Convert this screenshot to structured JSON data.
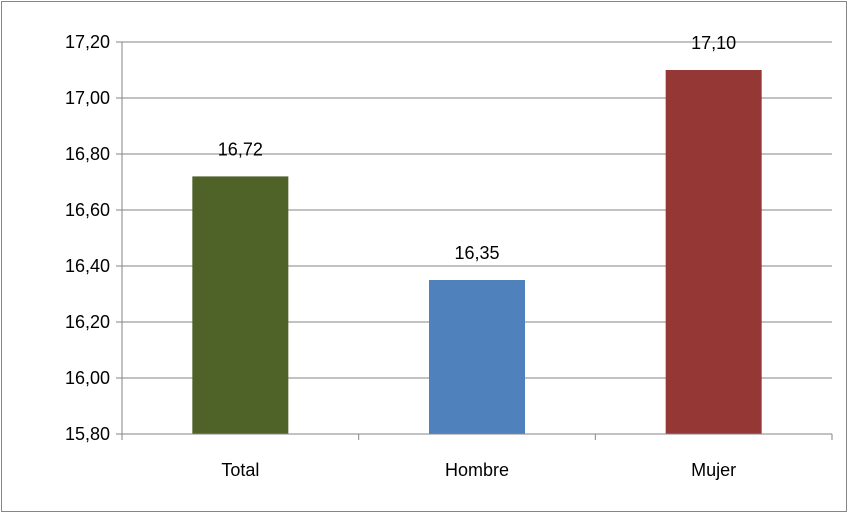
{
  "chart_data": {
    "type": "bar",
    "title": "",
    "xlabel": "",
    "ylabel": "",
    "categories": [
      "Total",
      "Hombre",
      "Mujer"
    ],
    "values": [
      16.72,
      16.35,
      17.1
    ],
    "data_labels": [
      "16,72",
      "16,35",
      "17,10"
    ],
    "colors": [
      "#4F6228",
      "#4F81BD",
      "#953735"
    ],
    "ylim": [
      15.8,
      17.2
    ],
    "yticks": [
      15.8,
      16.0,
      16.2,
      16.4,
      16.6,
      16.8,
      17.0,
      17.2
    ],
    "ytick_labels": [
      "15,80",
      "16,00",
      "16,20",
      "16,40",
      "16,60",
      "16,80",
      "17,00",
      "17,20"
    ],
    "grid": true,
    "legend": "none"
  }
}
